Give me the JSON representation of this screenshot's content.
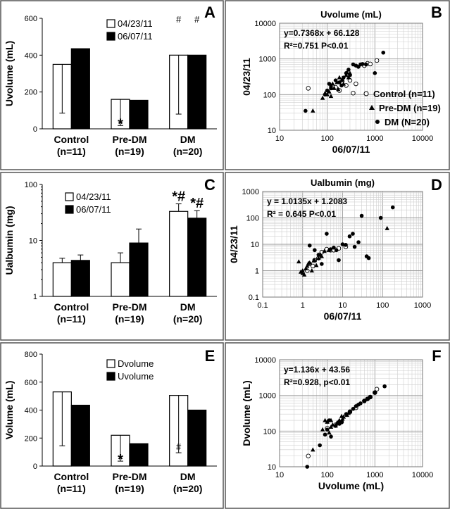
{
  "chart_data": [
    {
      "panel": "A",
      "type": "bar",
      "ylabel": "Uvolume (mL)",
      "ylim": [
        0,
        600
      ],
      "yticks": [
        0,
        200,
        400,
        600
      ],
      "tick_labels": [
        "0",
        "200",
        "400",
        "600"
      ],
      "categories": [
        "Control",
        "Pre-DM",
        "DM"
      ],
      "category_n": [
        "(n=11)",
        "(n=19)",
        "(n=20)"
      ],
      "series": [
        {
          "name": "04/23/11",
          "fill": "#ffffff",
          "values": [
            350,
            160,
            400
          ],
          "errors": [
            85,
            18,
            80
          ]
        },
        {
          "name": "06/07/11",
          "fill": "#000000",
          "values": [
            435,
            155,
            400
          ],
          "errors": [
            125,
            18,
            85
          ]
        }
      ],
      "annotations": [
        {
          "text": "*",
          "category": 1,
          "series": 0
        },
        {
          "text": "*",
          "category": 1,
          "series": 1
        },
        {
          "text": "#",
          "category": 2,
          "series": 0
        },
        {
          "text": "#",
          "category": 2,
          "series": 1
        }
      ]
    },
    {
      "panel": "B",
      "type": "scatter",
      "title": "Uvolume (mL)",
      "xlabel": "06/07/11",
      "ylabel": "04/23/11",
      "log_scale": true,
      "xlim": [
        10,
        10000
      ],
      "ylim": [
        10,
        10000
      ],
      "xtick_labels": [
        "10",
        "100",
        "1000",
        "10000"
      ],
      "ytick_labels": [
        "10",
        "100",
        "1000",
        "10000"
      ],
      "grid": true,
      "equation": "y=0.7368x + 66.128",
      "stats": "R²=0.751   P<0.01",
      "legend": [
        "Control (n=11)",
        "Pre-DM (n=19)",
        "DM (N=20)"
      ],
      "series": [
        {
          "name": "Control (n=11)",
          "marker": "open-circle",
          "points": [
            [
              40,
              150
            ],
            [
              180,
              130
            ],
            [
              250,
              180
            ],
            [
              350,
              110
            ],
            [
              400,
              200
            ],
            [
              600,
              650
            ],
            [
              700,
              750
            ],
            [
              800,
              720
            ],
            [
              1100,
              900
            ],
            [
              150,
              160
            ],
            [
              300,
              250
            ]
          ]
        },
        {
          "name": "Pre-DM (n=19)",
          "marker": "triangle",
          "points": [
            [
              50,
              35
            ],
            [
              80,
              80
            ],
            [
              100,
              100
            ],
            [
              110,
              120
            ],
            [
              120,
              180
            ],
            [
              130,
              200
            ],
            [
              140,
              150
            ],
            [
              160,
              220
            ],
            [
              180,
              300
            ],
            [
              200,
              250
            ],
            [
              220,
              200
            ],
            [
              250,
              350
            ],
            [
              280,
              300
            ],
            [
              300,
              400
            ],
            [
              120,
              90
            ],
            [
              90,
              110
            ],
            [
              170,
              140
            ],
            [
              210,
              260
            ],
            [
              260,
              420
            ]
          ]
        },
        {
          "name": "DM (N=20)",
          "marker": "filled-circle",
          "points": [
            [
              35,
              35
            ],
            [
              90,
              100
            ],
            [
              100,
              130
            ],
            [
              110,
              200
            ],
            [
              120,
              150
            ],
            [
              150,
              250
            ],
            [
              180,
              220
            ],
            [
              200,
              180
            ],
            [
              220,
              300
            ],
            [
              250,
              400
            ],
            [
              280,
              500
            ],
            [
              300,
              350
            ],
            [
              350,
              700
            ],
            [
              400,
              650
            ],
            [
              450,
              600
            ],
            [
              500,
              700
            ],
            [
              550,
              720
            ],
            [
              650,
              700
            ],
            [
              1000,
              400
            ],
            [
              1500,
              1500
            ]
          ]
        }
      ]
    },
    {
      "panel": "C",
      "type": "bar",
      "ylabel": "Ualbumin (mg)",
      "log_scale": true,
      "ylim": [
        1,
        100
      ],
      "tick_labels": [
        "1",
        "10",
        "100"
      ],
      "categories": [
        "Control",
        "Pre-DM",
        "DM"
      ],
      "category_n": [
        "(n=11)",
        "(n=19)",
        "(n=20)"
      ],
      "series": [
        {
          "name": "04/23/11",
          "fill": "#ffffff",
          "values": [
            4.0,
            4.0,
            33
          ],
          "errors": [
            4.8,
            6.0,
            45
          ]
        },
        {
          "name": "06/07/11",
          "fill": "#000000",
          "values": [
            4.4,
            9.0,
            25
          ],
          "errors": [
            5.5,
            16,
            34
          ]
        }
      ],
      "annotations": [
        {
          "text": "*#",
          "category": 2,
          "series": 0
        },
        {
          "text": "*#",
          "category": 2,
          "series": 1
        }
      ]
    },
    {
      "panel": "D",
      "type": "scatter",
      "title": "Ualbumin (mg)",
      "xlabel": "06/07/11",
      "ylabel": "04/23/11",
      "log_scale": true,
      "xlim": [
        0.1,
        1000
      ],
      "ylim": [
        0.1,
        1000
      ],
      "xtick_labels": [
        "0.1",
        "1",
        "10",
        "100",
        "1000"
      ],
      "ytick_labels": [
        "0.1",
        "1",
        "10",
        "100",
        "1000"
      ],
      "grid": true,
      "equation": "y = 1.0135x + 1.2083",
      "stats": "R² = 0.645   P<0.01",
      "series": [
        {
          "name": "Control",
          "marker": "open-circle",
          "points": [
            [
              1.3,
              1.0
            ],
            [
              1.8,
              1.5
            ],
            [
              2.5,
              3.0
            ],
            [
              3.0,
              5.0
            ],
            [
              5.0,
              6.0
            ],
            [
              8.0,
              7.0
            ],
            [
              12.0,
              8.0
            ],
            [
              2.0,
              2.5
            ],
            [
              4.0,
              6.5
            ],
            [
              6.0,
              6.0
            ],
            [
              1.5,
              1.8
            ]
          ]
        },
        {
          "name": "Pre-DM",
          "marker": "triangle",
          "points": [
            [
              0.8,
              2.2
            ],
            [
              1.0,
              0.8
            ],
            [
              1.2,
              1.2
            ],
            [
              1.5,
              2.0
            ],
            [
              2.0,
              2.5
            ],
            [
              2.5,
              3.0
            ],
            [
              3.0,
              3.5
            ],
            [
              1.1,
              0.7
            ],
            [
              1.7,
              1.0
            ],
            [
              2.2,
              1.6
            ],
            [
              0.9,
              0.9
            ],
            [
              1.3,
              1.5
            ],
            [
              2.8,
              4.0
            ],
            [
              3.5,
              5.5
            ],
            [
              1.9,
              2.4
            ],
            [
              1.0,
              1.0
            ],
            [
              4.5,
              6.0
            ],
            [
              1.4,
              1.9
            ],
            [
              130,
              40
            ]
          ]
        },
        {
          "name": "DM",
          "marker": "filled-circle",
          "points": [
            [
              1.5,
              9
            ],
            [
              2.0,
              6
            ],
            [
              4.0,
              25
            ],
            [
              5.0,
              6.5
            ],
            [
              6.0,
              7.5
            ],
            [
              8.0,
              2.5
            ],
            [
              10.0,
              10
            ],
            [
              15.0,
              20
            ],
            [
              18.0,
              25
            ],
            [
              20.0,
              8.0
            ],
            [
              30.0,
              120
            ],
            [
              40.0,
              3.5
            ],
            [
              45.0,
              3.0
            ],
            [
              90,
              100
            ],
            [
              180,
              250
            ],
            [
              3.0,
              1.8
            ],
            [
              12.0,
              9.5
            ],
            [
              7.0,
              6.0
            ],
            [
              2.5,
              4.0
            ],
            [
              25,
              12
            ]
          ]
        }
      ]
    },
    {
      "panel": "E",
      "type": "bar",
      "ylabel": "Volume (mL)",
      "ylim": [
        0,
        800
      ],
      "yticks": [
        0,
        200,
        400,
        600,
        800
      ],
      "tick_labels": [
        "0",
        "200",
        "400",
        "600",
        "800"
      ],
      "categories": [
        "Control",
        "Pre-DM",
        "DM"
      ],
      "category_n": [
        "(n=11)",
        "(n=19)",
        "(n=20)"
      ],
      "series": [
        {
          "name": "Dvolume",
          "fill": "#ffffff",
          "values": [
            530,
            220,
            505
          ],
          "errors": [
            145,
            35,
            95
          ]
        },
        {
          "name": "Uvolume",
          "fill": "#000000",
          "values": [
            435,
            160,
            400
          ],
          "errors": [
            125,
            15,
            85
          ]
        }
      ],
      "annotations": [
        {
          "text": "*",
          "category": 1,
          "series": 0
        },
        {
          "text": "*",
          "category": 1,
          "series": 1
        },
        {
          "text": "#",
          "category": 2,
          "series": 0
        },
        {
          "text": "#",
          "category": 2,
          "series": 1
        }
      ]
    },
    {
      "panel": "F",
      "type": "scatter",
      "xlabel": "Uvolume (mL)",
      "ylabel": "Dvolume (mL)",
      "log_scale": true,
      "xlim": [
        10,
        10000
      ],
      "ylim": [
        10,
        10000
      ],
      "xtick_labels": [
        "10",
        "100",
        "1000",
        "10000"
      ],
      "ytick_labels": [
        "10",
        "100",
        "1000",
        "10000"
      ],
      "grid": true,
      "equation": "y=1.136x + 43.56",
      "stats": "R²=0.928, p<0.01",
      "series": [
        {
          "name": "Control",
          "marker": "open-circle",
          "points": [
            [
              40,
              20
            ],
            [
              100,
              120
            ],
            [
              150,
              150
            ],
            [
              200,
              180
            ],
            [
              300,
              350
            ],
            [
              400,
              450
            ],
            [
              600,
              700
            ],
            [
              700,
              800
            ],
            [
              800,
              900
            ],
            [
              1000,
              1200
            ],
            [
              1100,
              1500
            ]
          ]
        },
        {
          "name": "Pre-DM",
          "marker": "triangle",
          "points": [
            [
              50,
              30
            ],
            [
              80,
              110
            ],
            [
              90,
              200
            ],
            [
              100,
              180
            ],
            [
              120,
              200
            ],
            [
              130,
              150
            ],
            [
              150,
              140
            ],
            [
              160,
              170
            ],
            [
              180,
              200
            ],
            [
              200,
              260
            ],
            [
              220,
              250
            ],
            [
              250,
              300
            ],
            [
              280,
              320
            ],
            [
              300,
              350
            ],
            [
              120,
              130
            ],
            [
              110,
              90
            ],
            [
              170,
              180
            ],
            [
              210,
              220
            ],
            [
              260,
              280
            ]
          ]
        },
        {
          "name": "DM",
          "marker": "filled-circle",
          "points": [
            [
              38,
              10
            ],
            [
              70,
              40
            ],
            [
              90,
              80
            ],
            [
              100,
              110
            ],
            [
              110,
              200
            ],
            [
              120,
              70
            ],
            [
              150,
              140
            ],
            [
              180,
              160
            ],
            [
              200,
              180
            ],
            [
              250,
              300
            ],
            [
              300,
              350
            ],
            [
              350,
              420
            ],
            [
              400,
              500
            ],
            [
              450,
              550
            ],
            [
              500,
              600
            ],
            [
              600,
              700
            ],
            [
              700,
              800
            ],
            [
              800,
              900
            ],
            [
              1000,
              1200
            ],
            [
              1600,
              1800
            ]
          ]
        }
      ]
    }
  ]
}
